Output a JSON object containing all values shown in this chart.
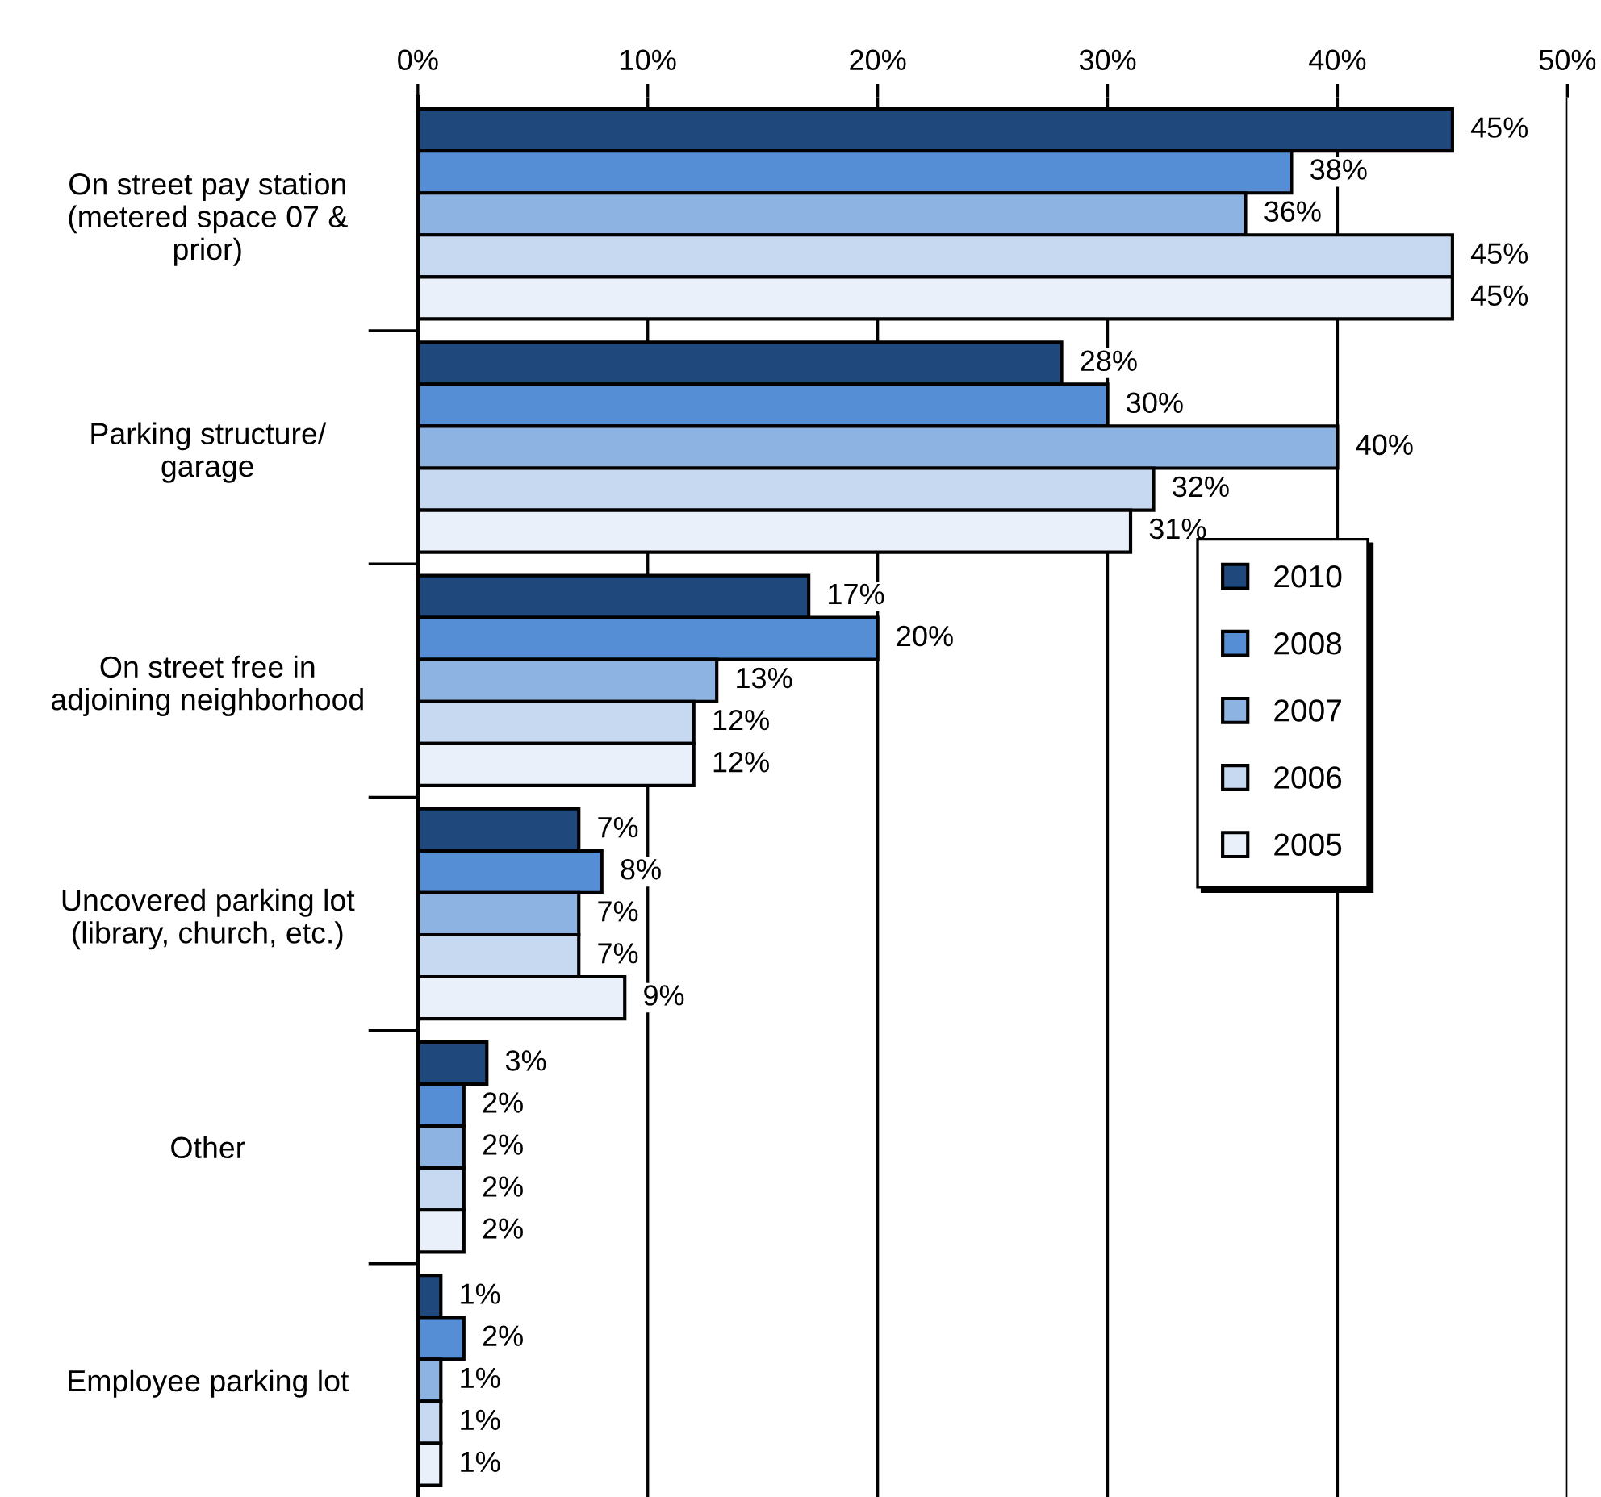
{
  "chart_data": {
    "type": "bar",
    "orientation": "horizontal",
    "categories": [
      "On street pay station\n(metered space 07 &\nprior)",
      "Parking structure/\ngarage",
      "On street free in\nadjoining neighborhood",
      "Uncovered parking lot\n(library, church, etc.)",
      "Other",
      "Employee parking lot"
    ],
    "series": [
      {
        "name": "2010",
        "color": "#1f497d",
        "values": [
          45,
          28,
          17,
          7,
          3,
          1
        ],
        "value_labels": [
          "45%",
          "28%",
          "17%",
          "7%",
          "3%",
          "1%"
        ]
      },
      {
        "name": "2008",
        "color": "#558ed5",
        "values": [
          38,
          30,
          20,
          8,
          2,
          2
        ],
        "value_labels": [
          "38%",
          "30%",
          "20%",
          "8%",
          "2%",
          "2%"
        ]
      },
      {
        "name": "2007",
        "color": "#8db3e2",
        "values": [
          36,
          40,
          13,
          7,
          2,
          1
        ],
        "value_labels": [
          "36%",
          "40%",
          "13%",
          "7%",
          "2%",
          "1%"
        ]
      },
      {
        "name": "2006",
        "color": "#c6d9f1",
        "values": [
          45,
          32,
          12,
          7,
          2,
          1
        ],
        "value_labels": [
          "45%",
          "32%",
          "12%",
          "7%",
          "2%",
          "1%"
        ]
      },
      {
        "name": "2005",
        "color": "#eaf0f9",
        "values": [
          45,
          31,
          12,
          9,
          2,
          1
        ],
        "value_labels": [
          "45%",
          "31%",
          "12%",
          "9%",
          "2%",
          "1%"
        ]
      }
    ],
    "xlim": [
      0,
      50
    ],
    "xticks": [
      {
        "value": 0,
        "label": "0%"
      },
      {
        "value": 10,
        "label": "10%"
      },
      {
        "value": 20,
        "label": "20%"
      },
      {
        "value": 30,
        "label": "30%"
      },
      {
        "value": 40,
        "label": "40%"
      },
      {
        "value": 50,
        "label": "50%"
      }
    ],
    "grid": "x",
    "legend": "right"
  }
}
